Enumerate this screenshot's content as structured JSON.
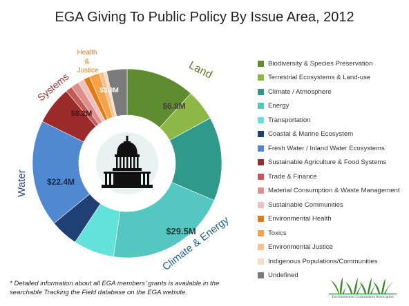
{
  "title": "EGA Giving To Public Policy By Issue Area, 2012",
  "footnote": "* Detailed information about all EGA members' grants is available in the searchable Tracking the Field database on the EGA website.",
  "logo_text": "Environmental Grantmakers Association",
  "chart_data": {
    "type": "pie",
    "variant": "donut",
    "title": "EGA Giving To Public Policy By Issue Area, 2012",
    "legend_position": "right",
    "center_icon": "capitol-dome-icon",
    "slices": [
      {
        "label": "Biodiversity & Species Preservation",
        "value": 13.5,
        "color": "#5e8c2e"
      },
      {
        "label": "Terrestrial Ecosystems & Land-use",
        "value": 6.1,
        "color": "#8db845"
      },
      {
        "label": "Climate / Atmosphere",
        "value": 16.5,
        "color": "#2f9a8c"
      },
      {
        "label": "Energy",
        "value": 24.0,
        "color": "#53c7c0"
      },
      {
        "label": "Transportation",
        "value": 8.0,
        "color": "#62e2da"
      },
      {
        "label": "Coastal & Marine Ecosystem",
        "value": 5.5,
        "color": "#203f74"
      },
      {
        "label": "Fresh Water / Inland Water Ecosystems",
        "value": 21.0,
        "color": "#5088d1"
      },
      {
        "label": "Sustainable Agriculture & Food Systems",
        "value": 7.5,
        "color": "#9a2b2a"
      },
      {
        "label": "Trade & Finance",
        "value": 1.3,
        "color": "#c45a55"
      },
      {
        "label": "Material Consumption & Waste Management",
        "value": 1.6,
        "color": "#df8e8c"
      },
      {
        "label": "Sustainable Communities",
        "value": 1.2,
        "color": "#efc0bc"
      },
      {
        "label": "Environmental Health",
        "value": 1.2,
        "color": "#e07a12"
      },
      {
        "label": "Toxics",
        "value": 2.0,
        "color": "#f7a148"
      },
      {
        "label": "Environmental Justice",
        "value": 0.9,
        "color": "#f9c08b"
      },
      {
        "label": "Indigenous Populations/Communities",
        "value": 0.6,
        "color": "#fcdcc0"
      },
      {
        "label": "Undefined",
        "value": 4.0,
        "color": "#7b7b7b"
      }
    ],
    "value_labels": [
      {
        "text": "$6.8M",
        "color": "#444444"
      },
      {
        "text": "$29.5M",
        "color": "#1d3b3b"
      },
      {
        "text": "$22.4M",
        "color": "#1a2a44"
      },
      {
        "text": "$8.2M",
        "color": "#3a1c1c"
      },
      {
        "text": "$3.3M",
        "color": "#ffffff"
      }
    ],
    "group_labels": [
      {
        "text": "Land",
        "color": "#5e7d2a"
      },
      {
        "text": "Climate & Energy",
        "color": "#1f5f8a"
      },
      {
        "text": "Water",
        "color": "#2b4c8c"
      },
      {
        "text": "Systems",
        "color": "#9a2b2a"
      },
      {
        "text": "Health",
        "color": "#e07a12"
      },
      {
        "text": "&",
        "color": "#e07a12"
      },
      {
        "text": "Justice",
        "color": "#e07a12"
      }
    ]
  }
}
